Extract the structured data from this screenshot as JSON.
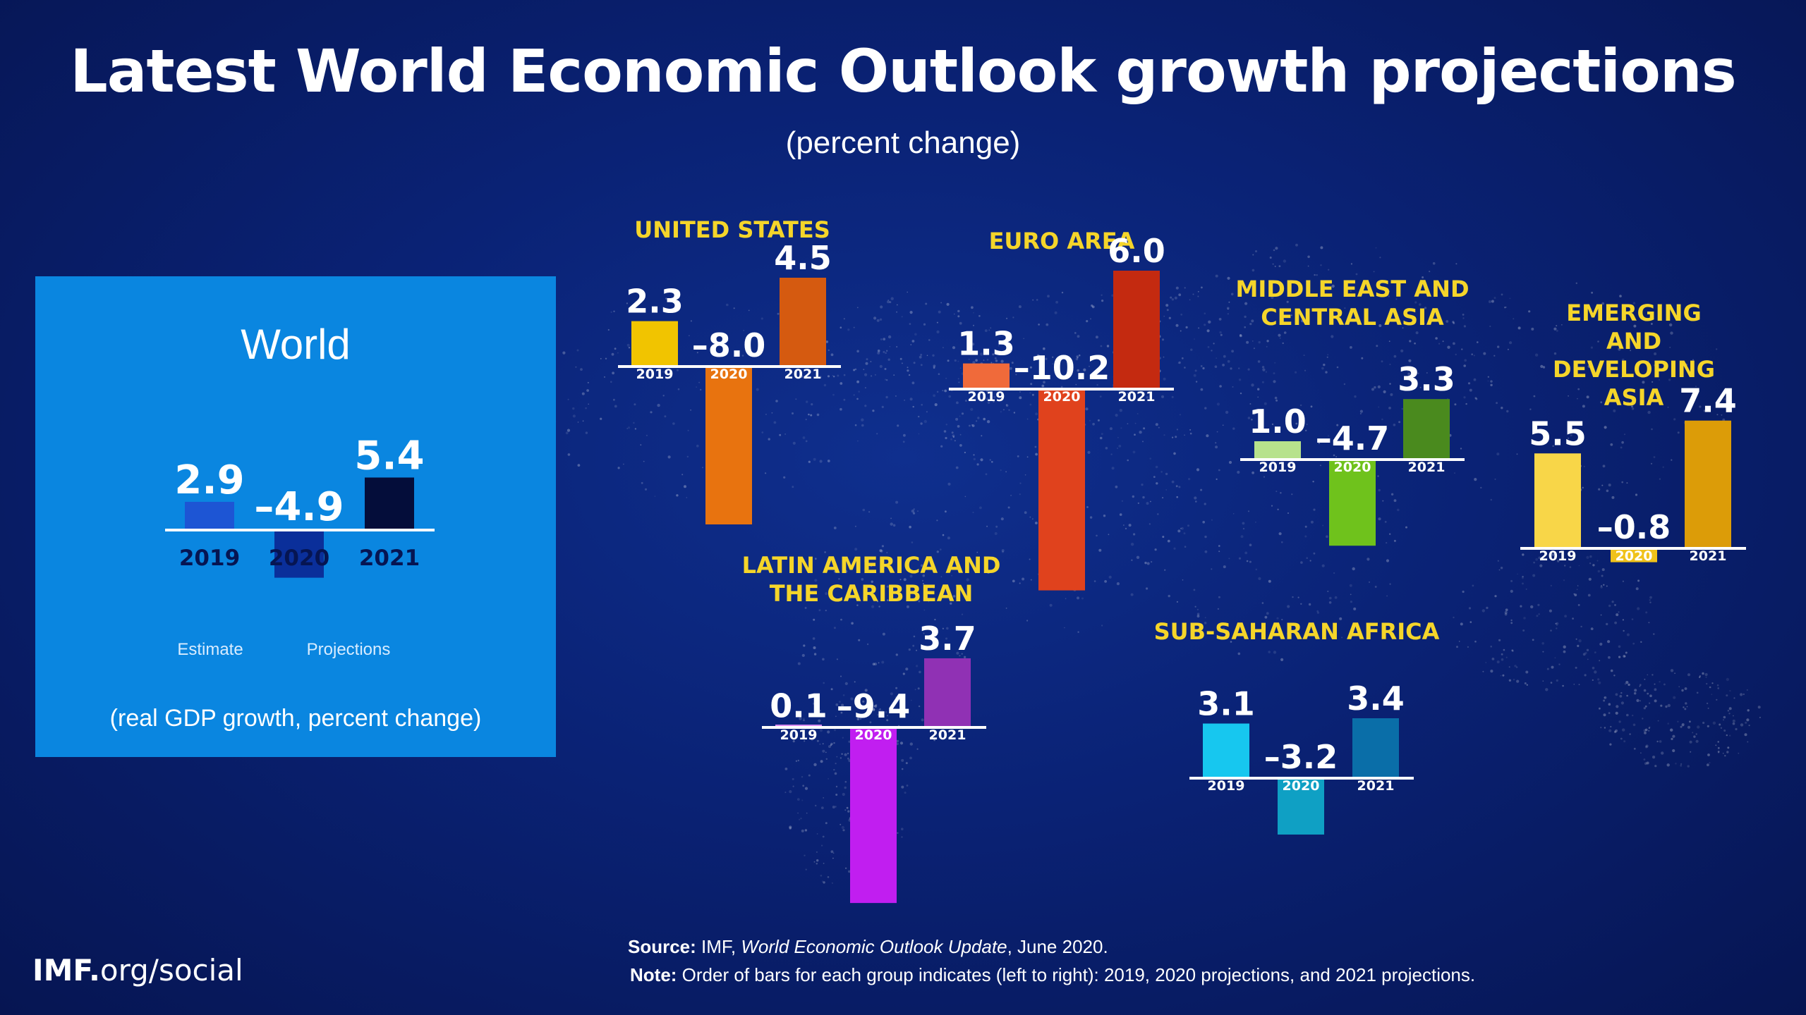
{
  "title": "Latest World Economic Outlook growth projections",
  "subtitle": "(percent change)",
  "world": {
    "title": "World",
    "note": "(real GDP growth, percent change)",
    "estimate_label": "Estimate",
    "projections_label": "Projections"
  },
  "colors": {
    "background": "#0a2275",
    "world_panel": "#0a86e0",
    "region_title": "#f5d52a"
  },
  "chart_data": [
    {
      "type": "bar",
      "title": "World",
      "categories": [
        "2019",
        "2020",
        "2021"
      ],
      "values": [
        2.9,
        -4.9,
        5.4
      ],
      "value_labels": [
        "2.9",
        "–4.9",
        "5.4"
      ],
      "colors": [
        "#1d55d4",
        "#0a2f9a",
        "#040d3a"
      ]
    },
    {
      "type": "bar",
      "title": "UNITED STATES",
      "categories": [
        "2019",
        "2020",
        "2021"
      ],
      "values": [
        2.3,
        -8.0,
        4.5
      ],
      "value_labels": [
        "2.3",
        "–8.0",
        "4.5"
      ],
      "colors": [
        "#f1c400",
        "#e8730f",
        "#d55a10"
      ]
    },
    {
      "type": "bar",
      "title": "EURO AREA",
      "categories": [
        "2019",
        "2020",
        "2021"
      ],
      "values": [
        1.3,
        -10.2,
        6.0
      ],
      "value_labels": [
        "1.3",
        "–10.2",
        "6.0"
      ],
      "colors": [
        "#f06a3a",
        "#e0421d",
        "#c42a10"
      ]
    },
    {
      "type": "bar",
      "title": "MIDDLE EAST AND\nCENTRAL ASIA",
      "categories": [
        "2019",
        "2020",
        "2021"
      ],
      "values": [
        1.0,
        -4.7,
        3.3
      ],
      "value_labels": [
        "1.0",
        "–4.7",
        "3.3"
      ],
      "colors": [
        "#b7e28c",
        "#6fc21c",
        "#4a8a1e"
      ]
    },
    {
      "type": "bar",
      "title": "EMERGING AND\nDEVELOPING ASIA",
      "categories": [
        "2019",
        "2020",
        "2021"
      ],
      "values": [
        5.5,
        -0.8,
        7.4
      ],
      "value_labels": [
        "5.5",
        "–0.8",
        "7.4"
      ],
      "colors": [
        "#f8d648",
        "#f0c21a",
        "#dc9c08"
      ]
    },
    {
      "type": "bar",
      "title": "LATIN AMERICA AND\nTHE CARIBBEAN",
      "categories": [
        "2019",
        "2020",
        "2021"
      ],
      "values": [
        0.1,
        -9.4,
        3.7
      ],
      "value_labels": [
        "0.1",
        "–9.4",
        "3.7"
      ],
      "colors": [
        "#d78af0",
        "#c11ef0",
        "#9031b4"
      ]
    },
    {
      "type": "bar",
      "title": "SUB-SAHARAN AFRICA",
      "categories": [
        "2019",
        "2020",
        "2021"
      ],
      "values": [
        3.1,
        -3.2,
        3.4
      ],
      "value_labels": [
        "3.1",
        "–3.2",
        "3.4"
      ],
      "colors": [
        "#17c7ef",
        "#0fa0c4",
        "#0a6ea8"
      ]
    }
  ],
  "footer": {
    "brand_bold": "IMF.",
    "brand_rest": "org/social",
    "source_label": "Source:",
    "source_pre": "IMF,",
    "source_title": "World Economic Outlook Update",
    "source_post": ", June 2020.",
    "note_label": "Note:",
    "note_text": "Order of bars for each group indicates (left to right): 2019, 2020 projections, and 2021 projections."
  }
}
